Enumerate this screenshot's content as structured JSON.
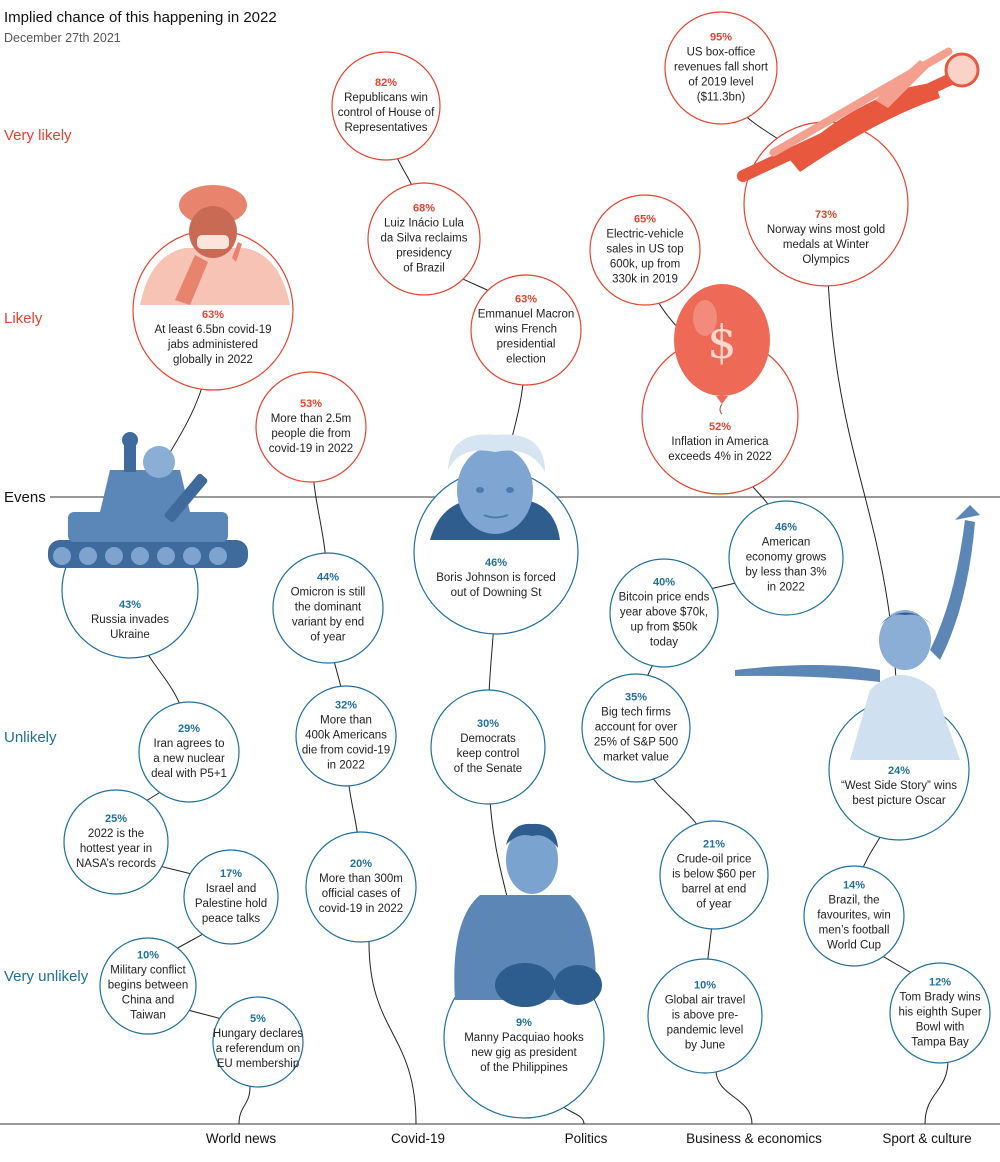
{
  "title": "Implied chance of this happening in 2022",
  "subtitle": "December 27th 2021",
  "colors": {
    "likely": "#e3432f",
    "unlikely": "#1f6f9c",
    "line": "#222222"
  },
  "chart_data": {
    "type": "scatter",
    "title": "Implied chance of this happening in 2022",
    "subtitle": "December 27th 2021",
    "ylim": [
      0,
      100
    ],
    "y_levels": [
      {
        "label": "Very likely",
        "value": 88
      },
      {
        "label": "Likely",
        "value": 68
      },
      {
        "label": "Evens",
        "value": 50
      },
      {
        "label": "Unlikely",
        "value": 29
      },
      {
        "label": "Very unlikely",
        "value": 9
      }
    ],
    "categories": [
      "World news",
      "Covid-19",
      "Politics",
      "Business & economics",
      "Sport & culture"
    ],
    "events": [
      {
        "category": "World news",
        "value": 63,
        "pct": "63%",
        "lines": [
          "At least 6.5bn covid-19",
          "jabs administered",
          "globally in 2022"
        ],
        "icon": "health-worker-icon"
      },
      {
        "category": "World news",
        "value": 43,
        "pct": "43%",
        "lines": [
          "Russia invades",
          "Ukraine"
        ],
        "icon": "tank-icon"
      },
      {
        "category": "World news",
        "value": 29,
        "pct": "29%",
        "lines": [
          "Iran agrees to",
          "a new nuclear",
          "deal with P5+1"
        ]
      },
      {
        "category": "World news",
        "value": 25,
        "pct": "25%",
        "lines": [
          "2022 is the",
          "hottest year in",
          "NASA’s records"
        ]
      },
      {
        "category": "World news",
        "value": 17,
        "pct": "17%",
        "lines": [
          "Israel and",
          "Palestine hold",
          "peace talks"
        ]
      },
      {
        "category": "World news",
        "value": 10,
        "pct": "10%",
        "lines": [
          "Military conflict",
          "begins between",
          "China and",
          "Taiwan"
        ]
      },
      {
        "category": "World news",
        "value": 5,
        "pct": "5%",
        "lines": [
          "Hungary declares",
          "a referendum on",
          "EU membership"
        ]
      },
      {
        "category": "Covid-19",
        "value": 53,
        "pct": "53%",
        "lines": [
          "More than 2.5m",
          "people die from",
          "covid-19 in 2022"
        ]
      },
      {
        "category": "Covid-19",
        "value": 44,
        "pct": "44%",
        "lines": [
          "Omicron is still",
          "the dominant",
          "variant by end",
          "of year"
        ]
      },
      {
        "category": "Covid-19",
        "value": 32,
        "pct": "32%",
        "lines": [
          "More than",
          "400k Americans",
          "die from covid-19",
          "in 2022"
        ]
      },
      {
        "category": "Covid-19",
        "value": 20,
        "pct": "20%",
        "lines": [
          "More than 300m",
          "official cases of",
          "covid-19 in 2022"
        ]
      },
      {
        "category": "Politics",
        "value": 82,
        "pct": "82%",
        "lines": [
          "Republicans win",
          "control of House of",
          "Representatives"
        ]
      },
      {
        "category": "Politics",
        "value": 68,
        "pct": "68%",
        "lines": [
          "Luiz Inácio Lula",
          "da Silva reclaims",
          "presidency",
          "of Brazil"
        ]
      },
      {
        "category": "Politics",
        "value": 63,
        "pct": "63%",
        "lines": [
          "Emmanuel Macron",
          "wins French",
          "presidential",
          "election"
        ]
      },
      {
        "category": "Politics",
        "value": 46,
        "pct": "46%",
        "lines": [
          "Boris Johnson is forced",
          "out of Downing St"
        ],
        "icon": "boris-johnson-portrait"
      },
      {
        "category": "Politics",
        "value": 30,
        "pct": "30%",
        "lines": [
          "Democrats",
          "keep control",
          "of the Senate"
        ]
      },
      {
        "category": "Politics",
        "value": 9,
        "pct": "9%",
        "lines": [
          "Manny Pacquiao hooks",
          "new gig as president",
          "of the Philippines"
        ],
        "icon": "boxer-icon"
      },
      {
        "category": "Business & economics",
        "value": 65,
        "pct": "65%",
        "lines": [
          "Electric-vehicle",
          "sales in US top",
          "600k, up from",
          "330k in 2019"
        ]
      },
      {
        "category": "Business & economics",
        "value": 52,
        "pct": "52%",
        "lines": [
          "Inflation in America",
          "exceeds 4% in 2022"
        ],
        "icon": "dollar-balloon-icon",
        "balloon_symbol": "$"
      },
      {
        "category": "Business & economics",
        "value": 46,
        "pct": "46%",
        "lines": [
          "American",
          "economy grows",
          "by less than 3%",
          "in 2022"
        ]
      },
      {
        "category": "Business & economics",
        "value": 40,
        "pct": "40%",
        "lines": [
          "Bitcoin price ends",
          "year above $70k,",
          "up from $50k",
          "today"
        ]
      },
      {
        "category": "Business & economics",
        "value": 35,
        "pct": "35%",
        "lines": [
          "Big tech firms",
          "account for over",
          "25% of S&P 500",
          "market value"
        ]
      },
      {
        "category": "Business & economics",
        "value": 21,
        "pct": "21%",
        "lines": [
          "Crude-oil price",
          "is below $60 per",
          "barrel at end",
          "of year"
        ]
      },
      {
        "category": "Business & economics",
        "value": 10,
        "pct": "10%",
        "lines": [
          "Global air travel",
          "is above pre-",
          "pandemic level",
          "by June"
        ]
      },
      {
        "category": "Sport & culture",
        "value": 95,
        "pct": "95%",
        "lines": [
          "US box-office",
          "revenues fall short",
          "of 2019 level",
          "($11.3bn)"
        ]
      },
      {
        "category": "Sport & culture",
        "value": 73,
        "pct": "73%",
        "lines": [
          "Norway wins most gold",
          "medals at Winter",
          "Olympics"
        ],
        "icon": "ski-jumper-icon"
      },
      {
        "category": "Sport & culture",
        "value": 24,
        "pct": "24%",
        "lines": [
          "“West Side Story” wins",
          "best picture Oscar"
        ],
        "icon": "dancer-icon"
      },
      {
        "category": "Sport & culture",
        "value": 14,
        "pct": "14%",
        "lines": [
          "Brazil, the",
          "favourites, win",
          "men’s football",
          "World Cup"
        ]
      },
      {
        "category": "Sport & culture",
        "value": 12,
        "pct": "12%",
        "lines": [
          "Tom Brady wins",
          "his eighth Super",
          "Bowl with",
          "Tampa Bay"
        ]
      }
    ]
  }
}
